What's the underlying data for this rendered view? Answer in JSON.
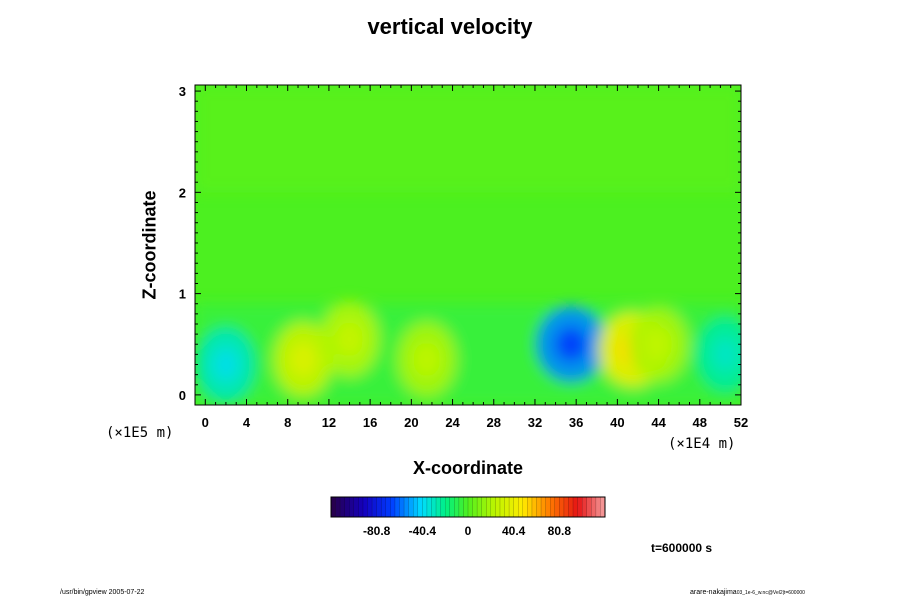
{
  "chart_data": {
    "type": "heatmap",
    "title": "vertical velocity",
    "xlabel": "X-coordinate",
    "ylabel": "Z-coordinate",
    "x_scale_label": "(×1E4 m)",
    "y_scale_label": "(×1E5 m)",
    "xlim": [
      -1,
      52
    ],
    "ylim": [
      -0.1,
      3.06
    ],
    "x_ticks": [
      0,
      4,
      8,
      12,
      16,
      20,
      24,
      28,
      32,
      36,
      40,
      44,
      48,
      52
    ],
    "y_ticks": [
      0,
      1,
      2,
      3
    ],
    "colorbar": {
      "min": -121.2,
      "max": 121.2,
      "tick_values": [
        -80.8,
        -40.4,
        0,
        40.4,
        80.8
      ],
      "tick_labels": [
        "-80.8",
        "-40.4",
        "0",
        "40.4",
        "80.8"
      ]
    },
    "features": [
      {
        "x": 2,
        "z": 0.3,
        "value": -30
      },
      {
        "x": 9.5,
        "z": 0.35,
        "value": 28
      },
      {
        "x": 14,
        "z": 0.55,
        "value": 22
      },
      {
        "x": 21.5,
        "z": 0.35,
        "value": 20
      },
      {
        "x": 35.5,
        "z": 0.5,
        "value": -55
      },
      {
        "x": 41.5,
        "z": 0.45,
        "value": 42
      },
      {
        "x": 44,
        "z": 0.5,
        "value": 20
      },
      {
        "x": 50.5,
        "z": 0.4,
        "value": -25
      }
    ]
  },
  "time_label": "t=600000 s",
  "footer": {
    "left": "/usr/bin/gpview 2005-07-22",
    "right_main": "arare-nakajima",
    "right_sub": "03_1e-6_w.nc@Vel2|t=600000"
  }
}
